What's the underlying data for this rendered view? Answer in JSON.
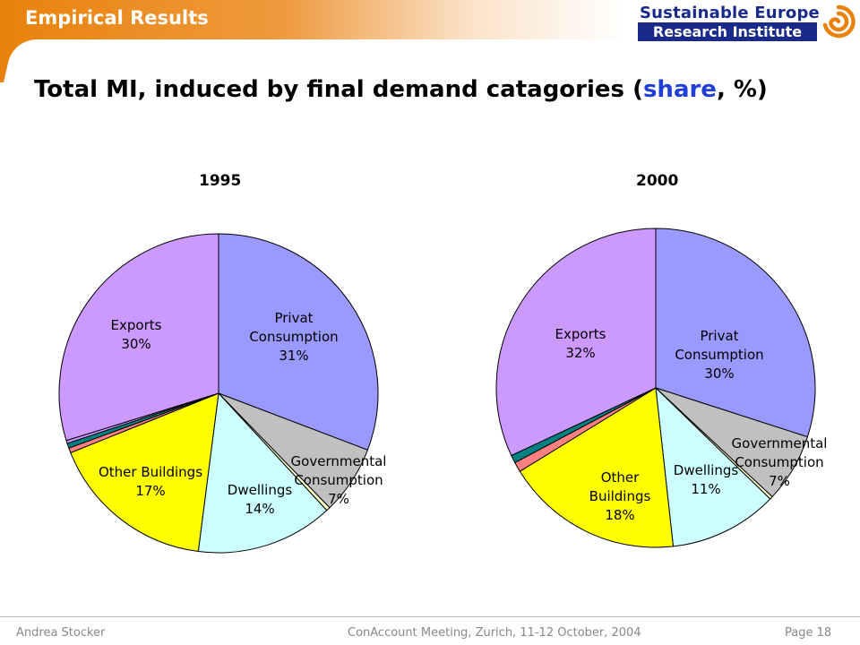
{
  "header": {
    "section_title": "Empirical Results"
  },
  "logo": {
    "line1": "Sustainable Europe",
    "line2": "Research Institute"
  },
  "slide": {
    "title_prefix": "Total MI, induced by final demand catagories (",
    "title_accent": "share",
    "title_suffix": ", %)"
  },
  "footer": {
    "author": "Andrea Stocker",
    "event": "ConAccount Meeting, Zurich, 11-12 October, 2004",
    "page": "Page 18"
  },
  "chart_data": [
    {
      "type": "pie",
      "title": "1995",
      "series": [
        {
          "label_lines": [
            "Privat",
            "Consumption",
            "31%"
          ],
          "value": 31,
          "color": "#9999ff"
        },
        {
          "label_lines": [
            "Governmental",
            "Consumption",
            "7%"
          ],
          "value": 7,
          "color": "#c0c0c0"
        },
        {
          "label_lines": [],
          "value": 0.4,
          "color": "#ffffcc"
        },
        {
          "label_lines": [
            "Dwellings",
            "14%"
          ],
          "value": 14,
          "color": "#ccffff"
        },
        {
          "label_lines": [
            "Other Buildings",
            "17%"
          ],
          "value": 17,
          "color": "#ffff00"
        },
        {
          "label_lines": [],
          "value": 0.5,
          "color": "#ff8080"
        },
        {
          "label_lines": [],
          "value": 0.5,
          "color": "#008080"
        },
        {
          "label_lines": [],
          "value": 0.3,
          "color": "#cc99ff"
        },
        {
          "label_lines": [
            "Exports",
            "30%"
          ],
          "value": 30,
          "color": "#cc99ff"
        }
      ]
    },
    {
      "type": "pie",
      "title": "2000",
      "series": [
        {
          "label_lines": [
            "Privat",
            "Consumption",
            "30%"
          ],
          "value": 30,
          "color": "#9999ff"
        },
        {
          "label_lines": [
            "Governmental",
            "Consumption",
            "7%"
          ],
          "value": 7,
          "color": "#c0c0c0"
        },
        {
          "label_lines": [],
          "value": 0.3,
          "color": "#ffffcc"
        },
        {
          "label_lines": [
            "Dwellings",
            "11%"
          ],
          "value": 11,
          "color": "#ccffff"
        },
        {
          "label_lines": [
            "Other",
            "Buildings",
            "18%"
          ],
          "value": 18,
          "color": "#ffff00"
        },
        {
          "label_lines": [],
          "value": 1,
          "color": "#ff8080"
        },
        {
          "label_lines": [],
          "value": 0.8,
          "color": "#008080"
        },
        {
          "label_lines": [
            "Exports",
            "32%"
          ],
          "value": 32,
          "color": "#cc99ff"
        }
      ]
    }
  ],
  "colors": {
    "header_orange": "#e8820c",
    "logo_blue": "#1a2a8a",
    "logo_orange": "#e8820c",
    "accent_blue": "#1f3fd6"
  }
}
